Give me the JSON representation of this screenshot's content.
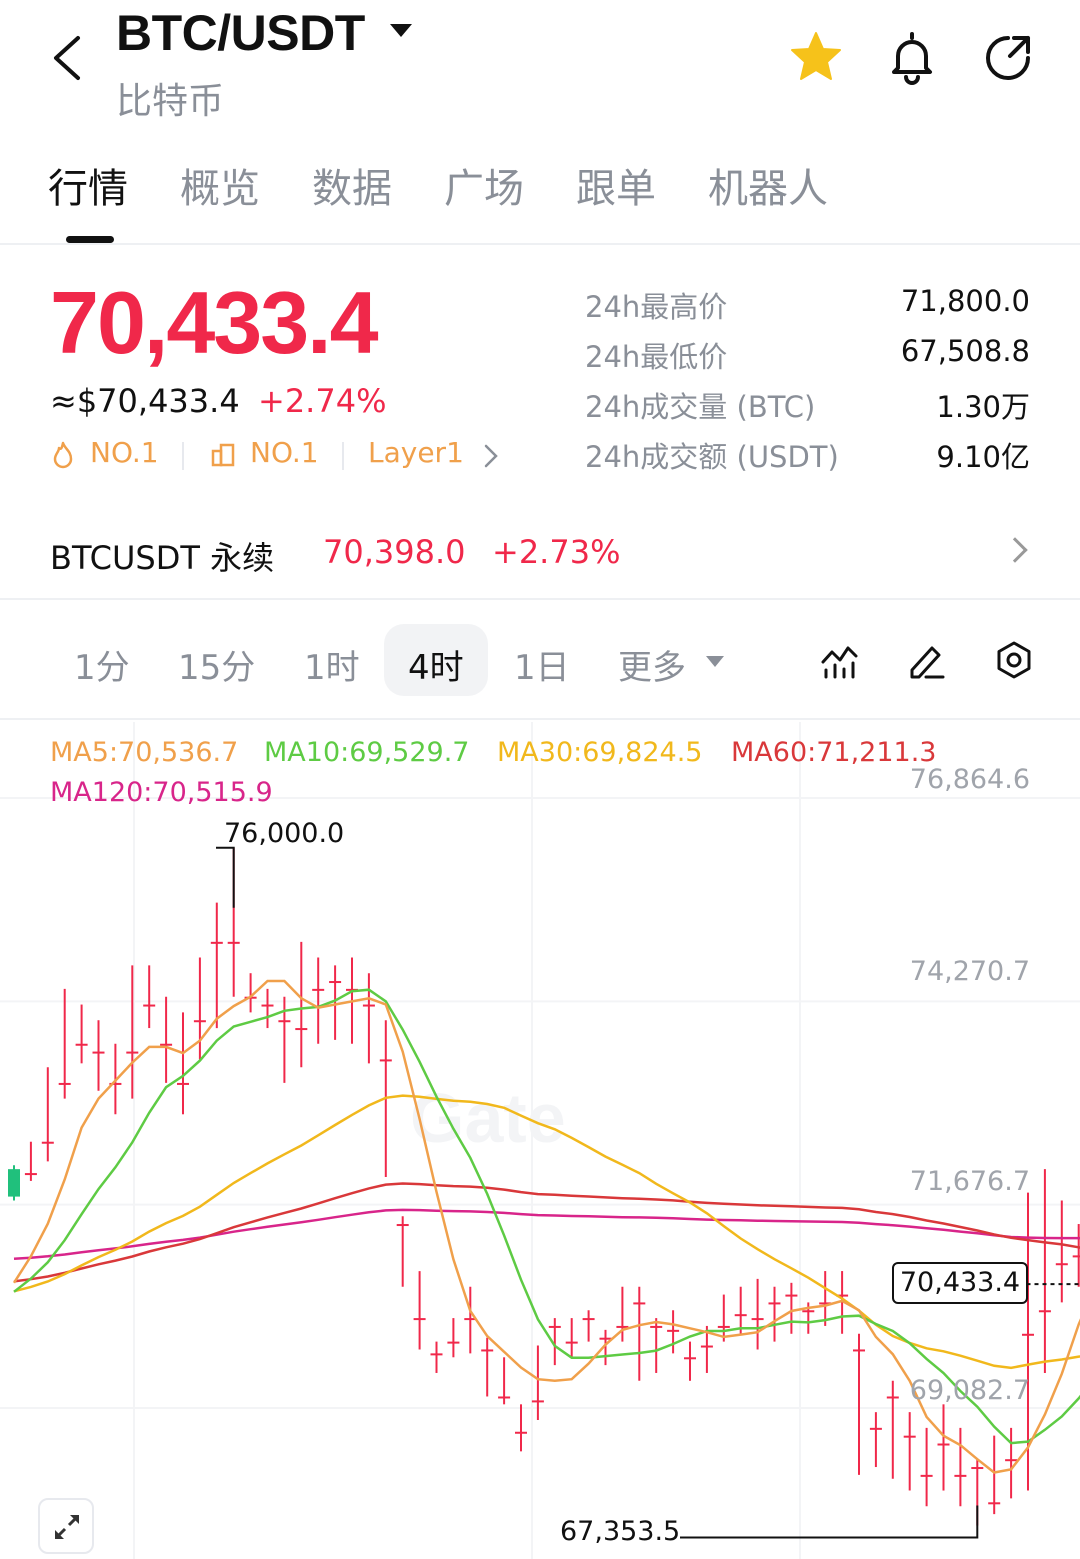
{
  "header": {
    "pair": "BTC/USDT",
    "name": "比特币"
  },
  "tabs": [
    "行情",
    "概览",
    "数据",
    "广场",
    "跟单",
    "机器人"
  ],
  "ticker": {
    "price": "70,433.4",
    "usd_price": "≈$70,433.4",
    "change_pct": "+2.74%",
    "badges": [
      "NO.1",
      "NO.1",
      "Layer1"
    ],
    "stats": [
      {
        "label": "24h最高价",
        "value": "71,800.0"
      },
      {
        "label": "24h最低价",
        "value": "67,508.8"
      },
      {
        "label": "24h成交量 (BTC)",
        "value": "1.30万"
      },
      {
        "label": "24h成交额 (USDT)",
        "value": "9.10亿"
      }
    ]
  },
  "perpetual": {
    "name": "BTCUSDT 永续",
    "price": "70,398.0",
    "change_pct": "+2.73%"
  },
  "timeframes": {
    "items": [
      "1分",
      "15分",
      "1时",
      "4时",
      "1日",
      "更多"
    ],
    "active": "4时"
  },
  "colors": {
    "up": "#f0284a",
    "down": "#20c07c",
    "badge": "#f0a04b",
    "ma5": "#f0a04b",
    "ma10": "#5ecb44",
    "ma30": "#f1b81c",
    "ma60": "#d9383a",
    "ma120": "#d8258a"
  },
  "chart_data": {
    "type": "candlestick",
    "indicators": [
      {
        "name": "MA5",
        "label": "MA5:70,536.7",
        "value": 70536.7
      },
      {
        "name": "MA10",
        "label": "MA10:69,529.7",
        "value": 69529.7
      },
      {
        "name": "MA30",
        "label": "MA30:69,824.5",
        "value": 69824.5
      },
      {
        "name": "MA60",
        "label": "MA60:71,211.3",
        "value": 71211.3
      },
      {
        "name": "MA120",
        "label": "MA120:70,515.9",
        "value": 70515.9
      }
    ],
    "y_ticks": [
      "76,864.6",
      "74,270.7",
      "71,676.7",
      "69,082.7"
    ],
    "y_tick_values": [
      76864.6,
      74270.7,
      71676.7,
      69082.7
    ],
    "high_label": "76,000.0",
    "high_value": 76000.0,
    "low_label": "67,353.5",
    "low_value": 67353.5,
    "current_label": "70,433.4",
    "current_value": 70433.4,
    "watermark": "Gate",
    "candles": [
      [
        71900,
        71950,
        71550,
        71500
      ],
      [
        71850,
        72250,
        71850,
        71750
      ],
      [
        72250,
        73200,
        72250,
        72000
      ],
      [
        73000,
        74200,
        73000,
        72800
      ],
      [
        73500,
        74000,
        73500,
        73250
      ],
      [
        73400,
        73800,
        73400,
        72900
      ],
      [
        73000,
        73500,
        73000,
        72600
      ],
      [
        73400,
        74500,
        73400,
        72800
      ],
      [
        74000,
        74500,
        74000,
        73700
      ],
      [
        73500,
        74100,
        73500,
        73000
      ],
      [
        73000,
        73900,
        73000,
        72600
      ],
      [
        73800,
        74600,
        73800,
        73300
      ],
      [
        74800,
        75300,
        74800,
        73700
      ],
      [
        74800,
        76000,
        74800,
        74100
      ],
      [
        74100,
        74400,
        74100,
        73900
      ],
      [
        74000,
        74200,
        74000,
        73700
      ],
      [
        73800,
        74100,
        73800,
        73000
      ],
      [
        73700,
        74800,
        73700,
        73200
      ],
      [
        74200,
        74600,
        74200,
        73500
      ],
      [
        74300,
        74500,
        74300,
        73550
      ],
      [
        74200,
        74600,
        74200,
        73500
      ],
      [
        74000,
        74400,
        74000,
        73250
      ],
      [
        73300,
        73800,
        73300,
        71800
      ],
      [
        71200,
        71300,
        71200,
        70400
      ],
      [
        70000,
        70600,
        70000,
        69600
      ],
      [
        69550,
        69700,
        69550,
        69300
      ],
      [
        69700,
        70000,
        69700,
        69500
      ],
      [
        70000,
        70400,
        70000,
        69550
      ],
      [
        69600,
        69750,
        69600,
        69000
      ],
      [
        69000,
        69500,
        69000,
        68900
      ],
      [
        68550,
        68900,
        68550,
        68300
      ],
      [
        68950,
        69650,
        68950,
        68700
      ],
      [
        69900,
        70000,
        69900,
        69400
      ],
      [
        69700,
        70000,
        69700,
        69500
      ],
      [
        70000,
        70100,
        70000,
        69700
      ],
      [
        69750,
        69850,
        69750,
        69400
      ],
      [
        69900,
        70400,
        69900,
        69700
      ],
      [
        70200,
        70400,
        70200,
        69200
      ],
      [
        69900,
        70000,
        69900,
        69300
      ],
      [
        69850,
        70100,
        69850,
        69550
      ],
      [
        69500,
        69700,
        69500,
        69200
      ],
      [
        69650,
        69900,
        69650,
        69300
      ],
      [
        69900,
        70300,
        69900,
        69700
      ],
      [
        70050,
        70400,
        70050,
        69800
      ],
      [
        70000,
        70500,
        70000,
        69600
      ],
      [
        70200,
        70400,
        70200,
        69700
      ],
      [
        70300,
        70450,
        70300,
        69800
      ],
      [
        70100,
        70200,
        70100,
        69800
      ],
      [
        70200,
        70600,
        70200,
        69900
      ],
      [
        70300,
        70600,
        70300,
        69800
      ],
      [
        69600,
        69800,
        69600,
        68000
      ],
      [
        68600,
        68800,
        68600,
        68100
      ],
      [
        69000,
        69200,
        69000,
        67950
      ],
      [
        68500,
        68800,
        68500,
        67800
      ],
      [
        68000,
        68600,
        68000,
        67600
      ],
      [
        68400,
        68900,
        68400,
        67800
      ],
      [
        68000,
        68600,
        68000,
        67600
      ],
      [
        68100,
        68200,
        68100,
        67353.5
      ],
      [
        67650,
        68500,
        67650,
        67500
      ],
      [
        68200,
        68600,
        68200,
        67700
      ],
      [
        69800,
        71600,
        69800,
        67800
      ],
      [
        70100,
        71900,
        70100,
        69300
      ],
      [
        70700,
        71500,
        70700,
        70200
      ],
      [
        70800,
        71200,
        70800,
        70400
      ],
      [
        70700,
        71000,
        70700,
        70300
      ],
      [
        70400,
        70700,
        70400,
        70200
      ]
    ]
  }
}
